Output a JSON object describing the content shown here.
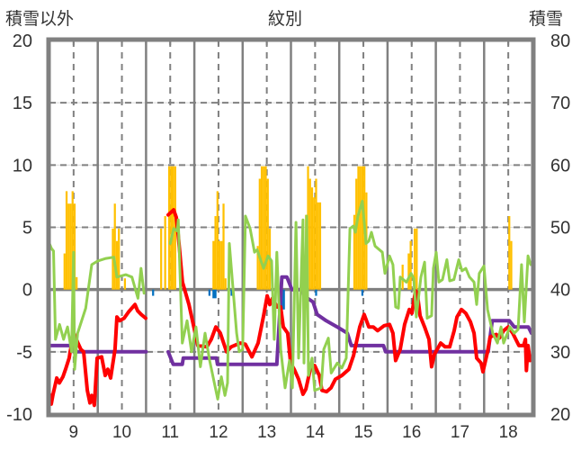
{
  "chart_data": {
    "type": "line",
    "title": "紋別",
    "ylabel_left": "積雪以外",
    "ylabel_right": "積雪",
    "x_unit": "hours since day 9 00:00",
    "xlim": [
      0,
      240
    ],
    "ylim_left": [
      -10,
      20
    ],
    "ylim_right": [
      20,
      80
    ],
    "y_ticks_left": [
      "20",
      "15",
      "10",
      "5",
      "0",
      "-5",
      "-10"
    ],
    "y_ticks_right": [
      "80",
      "70",
      "60",
      "50",
      "40",
      "30",
      "20"
    ],
    "x_tick_labels": [
      "9",
      "10",
      "11",
      "12",
      "13",
      "14",
      "15",
      "16",
      "17",
      "18"
    ],
    "grid": true,
    "colors": {
      "red": "#FF0000",
      "green": "#92D050",
      "purple": "#7030A0",
      "orange": "#FFC000",
      "blue": "#0070C0",
      "grid": "#808080"
    },
    "bars_positive": [
      [
        7,
        2.9
      ],
      [
        8,
        7.9
      ],
      [
        9,
        6.9
      ],
      [
        10,
        6.9
      ],
      [
        11,
        7.9
      ],
      [
        12,
        6.9
      ],
      [
        13,
        1.0
      ],
      [
        31,
        4.9
      ],
      [
        32,
        6.9
      ],
      [
        33,
        3.9
      ],
      [
        34,
        4.9
      ],
      [
        37,
        0.9
      ],
      [
        55,
        4.9
      ],
      [
        57,
        5.9
      ],
      [
        59,
        9.9
      ],
      [
        60,
        9.9
      ],
      [
        61,
        9.9
      ],
      [
        62,
        9.9
      ],
      [
        81,
        3.9
      ],
      [
        82,
        5.9
      ],
      [
        83,
        7.9
      ],
      [
        84,
        3.9
      ],
      [
        85,
        3.9
      ],
      [
        86,
        6.9
      ],
      [
        87,
        0.9
      ],
      [
        103,
        3.5
      ],
      [
        104,
        8.9
      ],
      [
        105,
        9.9
      ],
      [
        106,
        9.9
      ],
      [
        107,
        9.9
      ],
      [
        108,
        8.9
      ],
      [
        109,
        4.9
      ],
      [
        127,
        6.0
      ],
      [
        128,
        9.9
      ],
      [
        129,
        8.9
      ],
      [
        130,
        8.2
      ],
      [
        131,
        7.4
      ],
      [
        132,
        8.9
      ],
      [
        133,
        7.0
      ],
      [
        134,
        7.0
      ],
      [
        151,
        6.0
      ],
      [
        152,
        8.9
      ],
      [
        153,
        9.9
      ],
      [
        154,
        9.9
      ],
      [
        155,
        9.9
      ],
      [
        156,
        9.9
      ],
      [
        157,
        7.8
      ],
      [
        175,
        2.0
      ],
      [
        178,
        2.9
      ],
      [
        179,
        3.9
      ],
      [
        181,
        4.9
      ],
      [
        182,
        4.9
      ],
      [
        228,
        5.9
      ],
      [
        229,
        3.9
      ]
    ],
    "bars_negative": [
      [
        11,
        -0.6
      ],
      [
        51,
        -0.5
      ],
      [
        79,
        -0.5
      ],
      [
        81,
        -0.7
      ],
      [
        82,
        -0.7
      ],
      [
        90,
        -0.5
      ],
      [
        114,
        -0.5
      ],
      [
        115,
        -1.6
      ],
      [
        116,
        -1.6
      ],
      [
        132,
        -0.5
      ],
      [
        155,
        -0.5
      ]
    ],
    "series": [
      {
        "name": "red",
        "axis": "left",
        "points": [
          [
            0,
            -8.4
          ],
          [
            0.9,
            -9.2
          ],
          [
            1.8,
            -8.4
          ],
          [
            3.6,
            -7.1
          ],
          [
            4.9,
            -7.5
          ],
          [
            6.7,
            -7.0
          ],
          [
            8,
            -6.4
          ],
          [
            9.8,
            -5.5
          ],
          [
            10.3,
            -5.0
          ],
          [
            12.1,
            -3.5
          ],
          [
            13.9,
            -4.2
          ],
          [
            15.6,
            -4.8
          ],
          [
            17,
            -5.0
          ],
          [
            18.8,
            -8.1
          ],
          [
            20.1,
            -9.1
          ],
          [
            21,
            -8.5
          ],
          [
            22.3,
            -9.3
          ],
          [
            23.7,
            -5.5
          ],
          [
            25.9,
            -5.4
          ],
          [
            27.7,
            -6.9
          ],
          [
            29,
            -6.4
          ],
          [
            30.4,
            -7.1
          ],
          [
            32.6,
            -4.8
          ],
          [
            33.5,
            -2.2
          ],
          [
            34.9,
            -2.5
          ],
          [
            37.1,
            -2.3
          ],
          [
            39.3,
            -1.8
          ],
          [
            42.5,
            -1.2
          ],
          [
            43.8,
            -1.7
          ],
          [
            45.6,
            -2.0
          ],
          [
            47.8,
            -2.3
          ],
          [
            48,
            null
          ],
          [
            59,
            6.0
          ],
          [
            61.7,
            6.4
          ],
          [
            63,
            5.8
          ],
          [
            63.9,
            4.5
          ],
          [
            66.1,
            0.6
          ],
          [
            69.3,
            -1.2
          ],
          [
            72.4,
            -3.5
          ],
          [
            73.7,
            -4.5
          ],
          [
            78.2,
            -4.6
          ],
          [
            80.4,
            -4.0
          ],
          [
            82.7,
            -3.0
          ],
          [
            84.9,
            -3.5
          ],
          [
            88,
            -5.0
          ],
          [
            90.3,
            -4.6
          ],
          [
            94.8,
            -4.3
          ],
          [
            97.4,
            -4.4
          ],
          [
            100.6,
            -5.4
          ],
          [
            103.7,
            -4.3
          ],
          [
            106.4,
            -2.1
          ],
          [
            108.2,
            -0.5
          ],
          [
            109.5,
            -1.2
          ],
          [
            110.8,
            -0.7
          ],
          [
            113.1,
            -1.4
          ],
          [
            114.9,
            -1.4
          ],
          [
            116.2,
            -3.0
          ],
          [
            118.4,
            -3.5
          ],
          [
            119.8,
            -5.9
          ],
          [
            121.6,
            -6.4
          ],
          [
            123.8,
            -7.2
          ],
          [
            126,
            -8.4
          ],
          [
            127.4,
            -8.0
          ],
          [
            129.6,
            -6.4
          ],
          [
            131.8,
            -6.1
          ],
          [
            134.1,
            -6.9
          ],
          [
            135.4,
            -8.1
          ],
          [
            137.7,
            -8.2
          ],
          [
            139.9,
            -7.9
          ],
          [
            142.1,
            -7.2
          ],
          [
            145.3,
            -6.9
          ],
          [
            148.8,
            -6.4
          ],
          [
            151.1,
            -5.3
          ],
          [
            154.2,
            -3.0
          ],
          [
            156.4,
            -2.0
          ],
          [
            158.7,
            -3.0
          ],
          [
            160.9,
            -3.0
          ],
          [
            163.1,
            -3.3
          ],
          [
            166.3,
            -2.9
          ],
          [
            169,
            -2.8
          ],
          [
            170.7,
            -3.5
          ],
          [
            172,
            -5.7
          ],
          [
            174.3,
            -4.8
          ],
          [
            176.5,
            -2.8
          ],
          [
            178.8,
            -1.6
          ],
          [
            180.1,
            -1.9
          ],
          [
            181.9,
            -0.1
          ],
          [
            182.8,
            -0.3
          ],
          [
            184.2,
            -2.1
          ],
          [
            186.4,
            -3.0
          ],
          [
            188.6,
            -4.0
          ],
          [
            189.9,
            -6.2
          ],
          [
            191.3,
            -5.2
          ],
          [
            194.4,
            -4.3
          ],
          [
            196.6,
            -4.6
          ],
          [
            198.9,
            -4.6
          ],
          [
            201.1,
            -3.3
          ],
          [
            202.5,
            -2.2
          ],
          [
            204.7,
            -1.6
          ],
          [
            206.9,
            -1.9
          ],
          [
            209.2,
            -2.6
          ],
          [
            211,
            -3.5
          ],
          [
            212.3,
            -5.5
          ],
          [
            214.5,
            -5.9
          ],
          [
            215.4,
            -6.6
          ],
          [
            217.7,
            -5.0
          ],
          [
            219,
            -3.8
          ],
          [
            222.1,
            -3.6
          ],
          [
            223.5,
            -3.9
          ],
          [
            225.7,
            -3.3
          ],
          [
            228,
            -3.0
          ],
          [
            230.2,
            -3.5
          ],
          [
            233.3,
            -4.5
          ],
          [
            235.6,
            -4.5
          ],
          [
            236.5,
            -4.0
          ],
          [
            237,
            -6.5
          ],
          [
            237.8,
            -4.5
          ],
          [
            238.8,
            -5.7
          ]
        ]
      },
      {
        "name": "green",
        "axis": "left",
        "points": [
          [
            0,
            3.7
          ],
          [
            1,
            3.3
          ],
          [
            2,
            3.1
          ],
          [
            3,
            -4.0
          ],
          [
            5,
            -2.8
          ],
          [
            7,
            -4.0
          ],
          [
            9,
            -3.0
          ],
          [
            11,
            -5.0
          ],
          [
            12,
            3.0
          ],
          [
            12.5,
            -6.4
          ],
          [
            14,
            -3.5
          ],
          [
            18,
            -1.5
          ],
          [
            21,
            2.0
          ],
          [
            24,
            2.3
          ],
          [
            28,
            2.5
          ],
          [
            32,
            2.6
          ],
          [
            33.5,
            1.0
          ],
          [
            38,
            1.2
          ],
          [
            41,
            1.0
          ],
          [
            44,
            -0.7
          ],
          [
            45.5,
            1.7
          ],
          [
            47,
            -0.3
          ],
          [
            48,
            null
          ],
          [
            60,
            3.7
          ],
          [
            61.7,
            4.9
          ],
          [
            63.5,
            4.7
          ],
          [
            64,
            5.6
          ],
          [
            66,
            -4.3
          ],
          [
            68.4,
            -2.5
          ],
          [
            70.6,
            -5.0
          ],
          [
            72.8,
            -3.0
          ],
          [
            75,
            -6.2
          ],
          [
            77.3,
            -3.5
          ],
          [
            79.6,
            -5.7
          ],
          [
            83.6,
            -8.8
          ],
          [
            85.4,
            -7.0
          ],
          [
            87.2,
            -8.5
          ],
          [
            88.5,
            -7.5
          ],
          [
            89.4,
            3.7
          ],
          [
            93,
            -3.5
          ],
          [
            94.3,
            -5.0
          ],
          [
            96,
            -4.8
          ],
          [
            97.4,
            5.9
          ],
          [
            99.7,
            4.9
          ],
          [
            101.9,
            3.0
          ],
          [
            103.2,
            3.2
          ],
          [
            106.4,
            1.7
          ],
          [
            108.6,
            2.7
          ],
          [
            110.4,
            2.3
          ],
          [
            111.7,
            -4.0
          ],
          [
            113,
            3.0
          ],
          [
            114.9,
            -4.8
          ],
          [
            117.1,
            -7.9
          ],
          [
            119.3,
            -5.7
          ],
          [
            120.7,
            -7.9
          ],
          [
            122.5,
            5.4
          ],
          [
            123.8,
            -5.5
          ],
          [
            126,
            5.6
          ],
          [
            126.5,
            -5.9
          ],
          [
            127.8,
            5.9
          ],
          [
            128.7,
            -6.9
          ],
          [
            130.5,
            -5.5
          ],
          [
            131.8,
            -8.1
          ],
          [
            135,
            -7.9
          ],
          [
            136.3,
            -4.8
          ],
          [
            138.6,
            -3.9
          ],
          [
            140,
            -6.7
          ],
          [
            143,
            -5.9
          ],
          [
            145.3,
            -6.3
          ],
          [
            147.5,
            -5.5
          ],
          [
            149.3,
            4.9
          ],
          [
            151,
            5.1
          ],
          [
            152,
            4.6
          ],
          [
            153.3,
            5.9
          ],
          [
            155.5,
            7.1
          ],
          [
            157.3,
            3.7
          ],
          [
            158.7,
            3.9
          ],
          [
            160,
            4.6
          ],
          [
            161.8,
            3.5
          ],
          [
            165.4,
            3.0
          ],
          [
            166.7,
            1.3
          ],
          [
            169,
            2.7
          ],
          [
            170.7,
            2.0
          ],
          [
            172,
            -1.4
          ],
          [
            173.4,
            -1.5
          ],
          [
            174.3,
            1.0
          ],
          [
            177.4,
            0.6
          ],
          [
            179.7,
            1.3
          ],
          [
            181,
            0.9
          ],
          [
            182.3,
            -2.2
          ],
          [
            184.6,
            1.0
          ],
          [
            186.4,
            2.2
          ],
          [
            187.7,
            -2.3
          ],
          [
            189.9,
            -2.1
          ],
          [
            190.8,
            1.7
          ],
          [
            192.2,
            3.0
          ],
          [
            193.5,
            0.6
          ],
          [
            195.3,
            0.8
          ],
          [
            197.5,
            2.4
          ],
          [
            198.9,
            0.7
          ],
          [
            201,
            0.8
          ],
          [
            203.4,
            2.4
          ],
          [
            205,
            1.5
          ],
          [
            206.9,
            1.7
          ],
          [
            208.7,
            1.0
          ],
          [
            211,
            0.6
          ],
          [
            212.3,
            -1.2
          ],
          [
            213.6,
            1.3
          ],
          [
            215.9,
            1.9
          ],
          [
            217.7,
            -1.6
          ],
          [
            220.3,
            -3.5
          ],
          [
            222.6,
            -4.3
          ],
          [
            224.4,
            -3.0
          ],
          [
            225.7,
            -4.3
          ],
          [
            228.8,
            -3.0
          ],
          [
            231,
            -3.5
          ],
          [
            232.9,
            -3.2
          ],
          [
            234.6,
            2.0
          ],
          [
            236,
            -2.6
          ],
          [
            237.8,
            2.7
          ],
          [
            239.1,
            2.0
          ]
        ]
      },
      {
        "name": "purple",
        "axis": "right",
        "points": [
          [
            0,
            31
          ],
          [
            10.5,
            31
          ],
          [
            12,
            30
          ],
          [
            48,
            30
          ],
          [
            48.5,
            null
          ],
          [
            59,
            30
          ],
          [
            61.5,
            28
          ],
          [
            66,
            28
          ],
          [
            66.5,
            29
          ],
          [
            83,
            29
          ],
          [
            83.5,
            28
          ],
          [
            113,
            28
          ],
          [
            115.5,
            42
          ],
          [
            118,
            42
          ],
          [
            120.5,
            40
          ],
          [
            126,
            40
          ],
          [
            126.5,
            39
          ],
          [
            131,
            38
          ],
          [
            133,
            36
          ],
          [
            137.5,
            35
          ],
          [
            143,
            34
          ],
          [
            148,
            33
          ],
          [
            150,
            31
          ],
          [
            166,
            31
          ],
          [
            167,
            30
          ],
          [
            218,
            30
          ],
          [
            220,
            35
          ],
          [
            228.5,
            35
          ],
          [
            231,
            34
          ],
          [
            238,
            34
          ],
          [
            239.5,
            33
          ]
        ]
      }
    ]
  }
}
